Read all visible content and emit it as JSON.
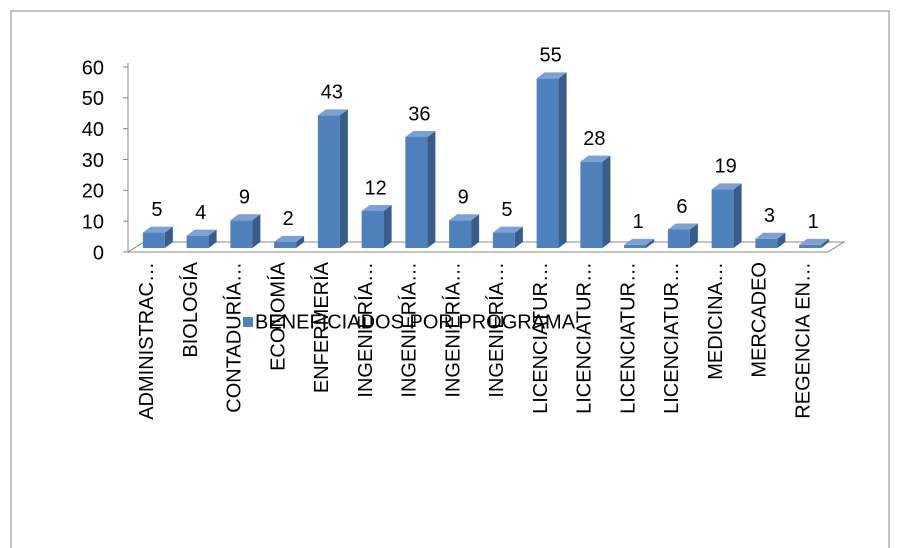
{
  "chart_data": {
    "type": "bar3d",
    "categories": [
      "ADMINISTRAC…",
      "BIOLOGÍA",
      "CONTADURÍA…",
      "ECONOMÍA",
      "ENFERMERÍA",
      "INGENIERÍA…",
      "INGENIERÍA…",
      "INGENIERÍA…",
      "INGENIERÍA…",
      "LICENCIATUR…",
      "LICENCIATUR…",
      "LICENCIATUR…",
      "LICENCIATUR…",
      "MEDICINA…",
      "MERCADEO",
      "REGENCIA EN…"
    ],
    "series": [
      {
        "name": "BENEFICIADOS POR PROGRAMA",
        "color": "#4f81bd",
        "values": [
          5,
          4,
          9,
          2,
          43,
          12,
          36,
          9,
          5,
          55,
          28,
          1,
          6,
          19,
          3,
          1
        ]
      }
    ],
    "ylim": [
      0,
      60
    ],
    "yticks": [
      0,
      10,
      20,
      30,
      40,
      50,
      60
    ],
    "data_labels": true,
    "legend": "bottom"
  }
}
